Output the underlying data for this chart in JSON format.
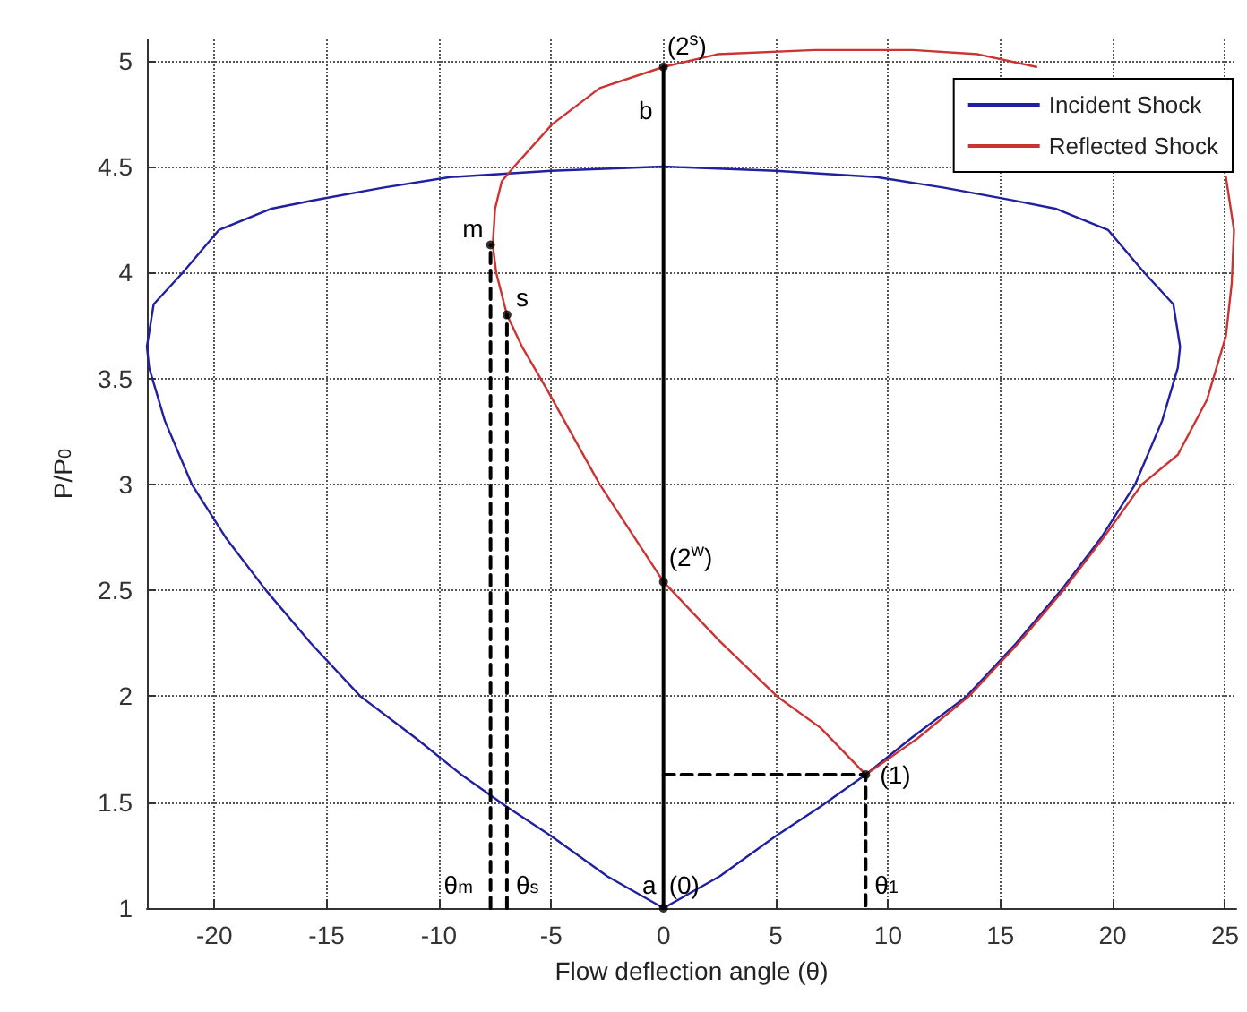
{
  "chart_data": {
    "type": "line",
    "xlabel": "Flow deflection angle (θ)",
    "ylabel": "P/P$_{0}$",
    "xlim": [
      -23,
      25.5
    ],
    "xticks": [
      -20,
      -15,
      -10,
      -5,
      0,
      5,
      10,
      15,
      20,
      25
    ],
    "ylim": [
      1,
      5.1
    ],
    "yticks": [
      1,
      1.5,
      2,
      2.5,
      3,
      3.5,
      4,
      4.5,
      5
    ],
    "grid": true,
    "legend": "top right",
    "marker": "none",
    "line_style": "solid",
    "series": [
      {
        "name": "Incident Shock",
        "color": "#2020a0",
        "x": [
          0,
          2.5,
          5,
          7,
          9,
          11,
          13.5,
          15.7,
          17.7,
          19.5,
          21,
          22.2,
          22.9,
          23,
          22.7,
          21.4,
          19.8,
          17.5,
          15.6,
          12.5,
          9.5,
          5,
          0,
          -5,
          -9.5,
          -12.5,
          -15.6,
          -17.5,
          -19.8,
          -21.4,
          -22.7,
          -23,
          -22.9,
          -22.2,
          -21,
          -19.5,
          -17.7,
          -15.7,
          -13.5,
          -11,
          -9,
          -7,
          -5,
          -2.5,
          0,
          2.5
        ],
        "values": [
          1,
          1.15,
          1.34,
          1.48,
          1.63,
          1.8,
          2.0,
          2.25,
          2.5,
          2.75,
          3.0,
          3.3,
          3.55,
          3.65,
          3.85,
          4.0,
          4.2,
          4.3,
          4.34,
          4.4,
          4.45,
          4.48,
          4.5,
          4.48,
          4.45,
          4.4,
          4.34,
          4.3,
          4.2,
          4.0,
          3.85,
          3.65,
          3.55,
          3.3,
          3.0,
          2.75,
          2.5,
          2.25,
          2.0,
          1.8,
          1.63,
          1.48,
          1.34,
          1.15,
          1,
          1.15
        ]
      },
      {
        "name": "Reflected Shock",
        "color": "#cc3333",
        "x": [
          9,
          7,
          5.05,
          2.5,
          0,
          -2.84,
          -5.2,
          -6.3,
          -6.97,
          -7.45,
          -7.6,
          -7.5,
          -7.2,
          -6.65,
          -4.95,
          -2.84,
          0,
          2.4,
          6.75,
          11.1,
          14,
          16.6,
          20.8,
          25.04,
          25.4,
          25.3,
          25.04,
          24.2,
          22.9,
          21.3,
          19.6,
          17.8,
          15.8,
          13.6,
          11.3,
          9
        ],
        "values": [
          1.63,
          1.85,
          2.0,
          2.26,
          2.54,
          3.0,
          3.45,
          3.65,
          3.8,
          4.0,
          4.13,
          4.3,
          4.43,
          4.5,
          4.7,
          4.87,
          4.97,
          5.03,
          5.05,
          5.05,
          5.03,
          4.97,
          null,
          4.45,
          4.2,
          3.95,
          3.7,
          3.4,
          3.14,
          3.0,
          2.75,
          2.5,
          2.25,
          2.0,
          1.8,
          1.63
        ]
      },
      {
        "color": "#000000",
        "x": [
          0,
          0
        ],
        "values": [
          1,
          4.97
        ]
      },
      {
        "color": "#000000",
        "line_style": "dashed",
        "x": [
          0,
          9,
          9
        ],
        "values": [
          1.63,
          1.63,
          1
        ]
      },
      {
        "color": "#000000",
        "line_style": "dashed",
        "x": [
          -7.7,
          -7.7
        ],
        "values": [
          1,
          4.13
        ]
      },
      {
        "color": "#000000",
        "line_style": "dashed",
        "x": [
          -6.97,
          -6.97
        ],
        "values": [
          1,
          3.8
        ]
      },
      {
        "type": "scatter",
        "marker": "circle",
        "color": "#000000",
        "x": [
          0,
          9,
          0,
          0,
          -7.7,
          -6.97
        ],
        "values": [
          1,
          1.63,
          2.54,
          4.97,
          4.13,
          3.8
        ]
      }
    ],
    "annotations": [
      {
        "text": "(2$^{s}$)",
        "x": 0,
        "y": 4.97
      },
      {
        "text": "b",
        "x": 0,
        "y": 4.97
      },
      {
        "text": "m",
        "x": -7.7,
        "y": 4.13
      },
      {
        "text": "s",
        "x": -6.97,
        "y": 3.8
      },
      {
        "text": "(2$^{w}$)",
        "x": 0,
        "y": 2.54
      },
      {
        "text": "(1)",
        "x": 9,
        "y": 1.63
      },
      {
        "text": "(0)",
        "x": 0,
        "y": 1
      },
      {
        "text": "a",
        "x": 0,
        "y": 1
      },
      {
        "text": "θ$_{m}$",
        "x": -7.7,
        "y": 1
      },
      {
        "text": "θ$_{s}$",
        "x": -6.97,
        "y": 1
      },
      {
        "text": "θ$_{1}$",
        "x": 9,
        "y": 1
      }
    ]
  }
}
